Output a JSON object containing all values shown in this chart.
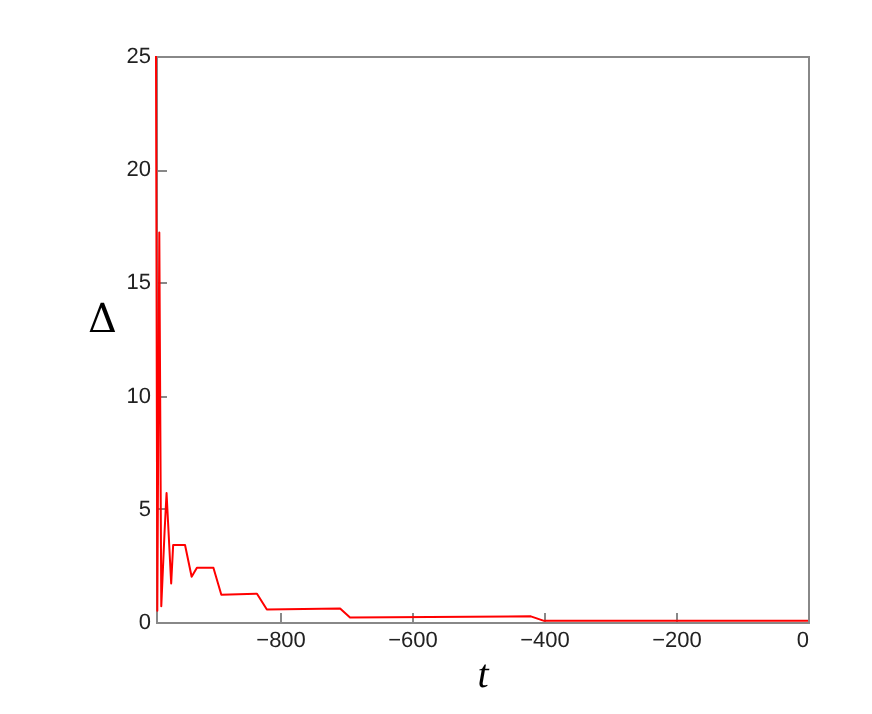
{
  "chart_data": {
    "type": "line",
    "xlabel": "t",
    "ylabel": "Δ",
    "x": [
      -988,
      -986,
      -983,
      -980,
      -975,
      -972,
      -965,
      -962,
      -944,
      -934,
      -926,
      -901,
      -889,
      -835,
      -820,
      -709,
      -694,
      -420,
      -400,
      0
    ],
    "series": [
      {
        "color": "#ff0000",
        "values": [
          25,
          0.5,
          17.2,
          0.7,
          4,
          5.7,
          1.7,
          3.4,
          3.4,
          2.0,
          2.4,
          2.4,
          1.2,
          1.25,
          0.55,
          0.6,
          0.2,
          0.25,
          0.05,
          0.05
        ]
      }
    ],
    "xlim": [
      -988,
      0
    ],
    "xticks": [
      -800,
      -600,
      -400,
      -200,
      0
    ],
    "ylim": [
      0,
      25
    ],
    "yticks": [
      0,
      5,
      10,
      15,
      20,
      25
    ],
    "grid": false,
    "marker": "none",
    "line_style": "solid"
  }
}
